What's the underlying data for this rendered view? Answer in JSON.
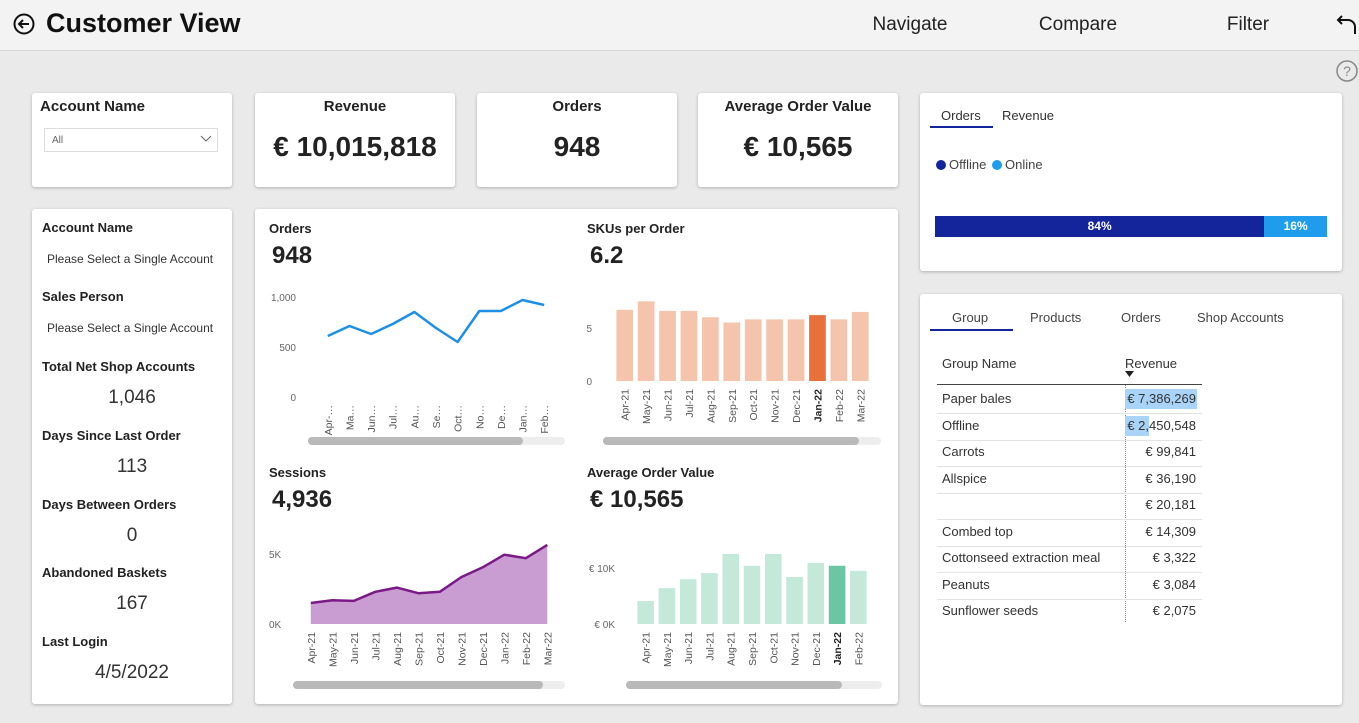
{
  "header": {
    "title": "Customer View",
    "nav": [
      "Navigate",
      "Compare",
      "Filter"
    ]
  },
  "filter": {
    "label": "Account Name",
    "value": "All"
  },
  "kpis": [
    {
      "label": "Revenue",
      "value": "€ 10,015,818"
    },
    {
      "label": "Orders",
      "value": "948"
    },
    {
      "label": "Average Order Value",
      "value": "€ 10,565"
    }
  ],
  "details": [
    {
      "label": "Account Name",
      "value": "Please Select a Single Account"
    },
    {
      "label": "Sales Person",
      "value": "Please Select a Single Account"
    },
    {
      "label": "Total Net Shop Accounts",
      "value": "1,046"
    },
    {
      "label": "Days Since Last Order",
      "value": "113"
    },
    {
      "label": "Days Between Orders",
      "value": "0"
    },
    {
      "label": "Abandoned Baskets",
      "value": "167"
    },
    {
      "label": "Last Login",
      "value": "4/5/2022"
    }
  ],
  "chart_data": [
    {
      "type": "line",
      "title": "Orders",
      "kpi": "948",
      "color": "#1e8fe6",
      "categories": [
        "Apr-…",
        "Ma…",
        "Jun…",
        "Jul…",
        "Au…",
        "Se…",
        "Oct…",
        "No…",
        "De…",
        "Jan…",
        "Feb…"
      ],
      "values": [
        610,
        710,
        630,
        730,
        850,
        690,
        550,
        860,
        860,
        970,
        920
      ],
      "ylim": [
        0,
        1000
      ],
      "yticks": [
        0,
        500,
        {
          "value": 1000,
          "label": "1,000"
        }
      ]
    },
    {
      "type": "bar",
      "title": "SKUs per Order",
      "kpi": "6.2",
      "color": "#f5c4ad",
      "highlight_color": "#e8703a",
      "highlight_index": 9,
      "categories": [
        "Apr-21",
        "May-21",
        "Jun-21",
        "Jul-21",
        "Aug-21",
        "Sep-21",
        "Oct-21",
        "Nov-21",
        "Dec-21",
        "Jan-22",
        "Feb-22",
        "Mar-22"
      ],
      "values": [
        6.7,
        7.5,
        6.6,
        6.6,
        6.0,
        5.5,
        5.8,
        5.8,
        5.8,
        6.2,
        5.8,
        6.5
      ],
      "ylim": [
        0,
        8
      ],
      "yticks": [
        0,
        5
      ]
    },
    {
      "type": "area",
      "title": "Sessions",
      "kpi": "4,936",
      "color": "#7a1a86",
      "fill": "#c99dd2",
      "categories": [
        "Apr-21",
        "May-21",
        "Jun-21",
        "Jul-21",
        "Aug-21",
        "Sep-21",
        "Oct-21",
        "Nov-21",
        "Dec-21",
        "Jan-22",
        "Feb-22",
        "Mar-22"
      ],
      "values": [
        1500,
        1700,
        1650,
        2300,
        2600,
        2200,
        2300,
        3350,
        4050,
        4950,
        4700,
        5650
      ],
      "ylim": [
        0,
        6000
      ],
      "yticks": [
        {
          "value": 0,
          "label": "0K"
        },
        {
          "value": 5000,
          "label": "5K"
        }
      ]
    },
    {
      "type": "bar",
      "title": "Average Order Value",
      "kpi": "€ 10,565",
      "color": "#c4e9db",
      "highlight_color": "#6cc5a5",
      "highlight_index": 9,
      "categories": [
        "Apr-21",
        "May-21",
        "Jun-21",
        "Jul-21",
        "Aug-21",
        "Sep-21",
        "Oct-21",
        "Nov-21",
        "Dec-21",
        "Jan-22",
        "Feb-22"
      ],
      "values": [
        4100,
        6400,
        8000,
        9100,
        12500,
        10400,
        12500,
        8400,
        10900,
        10400,
        9500
      ],
      "ylim": [
        0,
        15000
      ],
      "yticks": [
        {
          "value": 0,
          "label": "€ 0K"
        },
        {
          "value": 10000,
          "label": "€ 10K"
        }
      ]
    },
    {
      "type": "stacked_bar",
      "tabs": [
        "Orders",
        "Revenue"
      ],
      "xlim": [
        0,
        100
      ],
      "series": [
        {
          "name": "Offline",
          "color": "#14249b",
          "values": [
            84
          ],
          "value_labels": [
            "84%"
          ]
        },
        {
          "name": "Online",
          "color": "#1f9cec",
          "values": [
            16
          ],
          "value_labels": [
            "16%"
          ]
        }
      ]
    }
  ],
  "table": {
    "tabs": [
      "Group",
      "Products",
      "Orders",
      "Shop Accounts"
    ],
    "headers": [
      "Group Name",
      "Revenue"
    ],
    "rows": [
      [
        "Paper bales",
        "€ 7,386,269"
      ],
      [
        "Offline",
        "€ 2,450,548"
      ],
      [
        "Carrots",
        "€ 99,841"
      ],
      [
        "Allspice",
        "€ 36,190"
      ],
      [
        null,
        "€ 20,181"
      ],
      [
        "Combed top",
        "€ 14,309"
      ],
      [
        "Cottonseed extraction meal",
        "€ 3,322"
      ],
      [
        "Peanuts",
        "€ 3,084"
      ],
      [
        "Sunflower seeds",
        "€ 2,075"
      ]
    ]
  }
}
